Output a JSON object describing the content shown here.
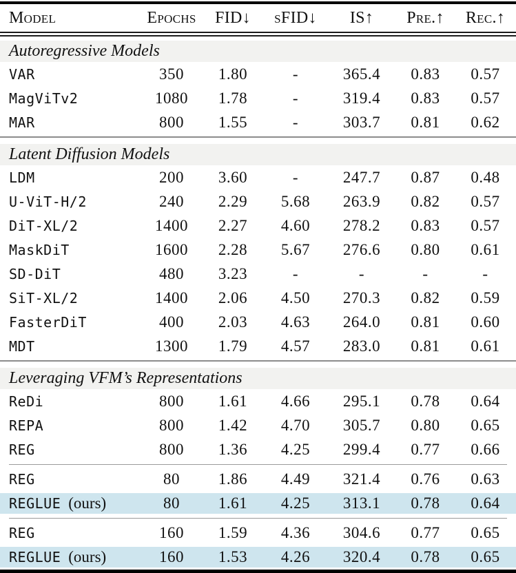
{
  "page": {
    "background": "#ffffff",
    "text_color": "#111111",
    "highlight_color": "#cee5ee",
    "section_band_color": "#f2f2f0"
  },
  "table": {
    "columns": [
      {
        "key": "model",
        "label": "Model"
      },
      {
        "key": "epochs",
        "label": "Epochs"
      },
      {
        "key": "fid",
        "label": "FID↓"
      },
      {
        "key": "sfid",
        "label": "sFID↓"
      },
      {
        "key": "is",
        "label": "IS↑"
      },
      {
        "key": "pre",
        "label": "Pre.↑"
      },
      {
        "key": "rec",
        "label": "Rec.↑"
      }
    ],
    "sections": [
      {
        "title": "Autoregressive Models",
        "groups": [
          {
            "rows": [
              {
                "model": "VAR",
                "suffix": "",
                "epochs": "350",
                "fid": "1.80",
                "sfid": "-",
                "is": "365.4",
                "pre": "0.83",
                "rec": "0.57",
                "highlight": false
              },
              {
                "model": "MagViTv2",
                "suffix": "",
                "epochs": "1080",
                "fid": "1.78",
                "sfid": "-",
                "is": "319.4",
                "pre": "0.83",
                "rec": "0.57",
                "highlight": false
              },
              {
                "model": "MAR",
                "suffix": "",
                "epochs": "800",
                "fid": "1.55",
                "sfid": "-",
                "is": "303.7",
                "pre": "0.81",
                "rec": "0.62",
                "highlight": false
              }
            ]
          }
        ]
      },
      {
        "title": "Latent Diffusion Models",
        "groups": [
          {
            "rows": [
              {
                "model": "LDM",
                "suffix": "",
                "epochs": "200",
                "fid": "3.60",
                "sfid": "-",
                "is": "247.7",
                "pre": "0.87",
                "rec": "0.48",
                "highlight": false
              },
              {
                "model": "U-ViT-H/2",
                "suffix": "",
                "epochs": "240",
                "fid": "2.29",
                "sfid": "5.68",
                "is": "263.9",
                "pre": "0.82",
                "rec": "0.57",
                "highlight": false
              },
              {
                "model": "DiT-XL/2",
                "suffix": "",
                "epochs": "1400",
                "fid": "2.27",
                "sfid": "4.60",
                "is": "278.2",
                "pre": "0.83",
                "rec": "0.57",
                "highlight": false
              },
              {
                "model": "MaskDiT",
                "suffix": "",
                "epochs": "1600",
                "fid": "2.28",
                "sfid": "5.67",
                "is": "276.6",
                "pre": "0.80",
                "rec": "0.61",
                "highlight": false
              },
              {
                "model": "SD-DiT",
                "suffix": "",
                "epochs": "480",
                "fid": "3.23",
                "sfid": "-",
                "is": "-",
                "pre": "-",
                "rec": "-",
                "highlight": false
              },
              {
                "model": "SiT-XL/2",
                "suffix": "",
                "epochs": "1400",
                "fid": "2.06",
                "sfid": "4.50",
                "is": "270.3",
                "pre": "0.82",
                "rec": "0.59",
                "highlight": false
              },
              {
                "model": "FasterDiT",
                "suffix": "",
                "epochs": "400",
                "fid": "2.03",
                "sfid": "4.63",
                "is": "264.0",
                "pre": "0.81",
                "rec": "0.60",
                "highlight": false
              },
              {
                "model": "MDT",
                "suffix": "",
                "epochs": "1300",
                "fid": "1.79",
                "sfid": "4.57",
                "is": "283.0",
                "pre": "0.81",
                "rec": "0.61",
                "highlight": false
              }
            ]
          }
        ]
      },
      {
        "title": "Leveraging VFM’s Representations",
        "groups": [
          {
            "rows": [
              {
                "model": "ReDi",
                "suffix": "",
                "epochs": "800",
                "fid": "1.61",
                "sfid": "4.66",
                "is": "295.1",
                "pre": "0.78",
                "rec": "0.64",
                "highlight": false
              },
              {
                "model": "REPA",
                "suffix": "",
                "epochs": "800",
                "fid": "1.42",
                "sfid": "4.70",
                "is": "305.7",
                "pre": "0.80",
                "rec": "0.65",
                "highlight": false
              },
              {
                "model": "REG",
                "suffix": "",
                "epochs": "800",
                "fid": "1.36",
                "sfid": "4.25",
                "is": "299.4",
                "pre": "0.77",
                "rec": "0.66",
                "highlight": false
              }
            ]
          },
          {
            "rows": [
              {
                "model": "REG",
                "suffix": "",
                "epochs": "80",
                "fid": "1.86",
                "sfid": "4.49",
                "is": "321.4",
                "pre": "0.76",
                "rec": "0.63",
                "highlight": false
              },
              {
                "model": "REGLUE",
                "suffix": "(ours)",
                "epochs": "80",
                "fid": "1.61",
                "sfid": "4.25",
                "is": "313.1",
                "pre": "0.78",
                "rec": "0.64",
                "highlight": true
              }
            ]
          },
          {
            "rows": [
              {
                "model": "REG",
                "suffix": "",
                "epochs": "160",
                "fid": "1.59",
                "sfid": "4.36",
                "is": "304.6",
                "pre": "0.77",
                "rec": "0.65",
                "highlight": false
              },
              {
                "model": "REGLUE",
                "suffix": "(ours)",
                "epochs": "160",
                "fid": "1.53",
                "sfid": "4.26",
                "is": "320.4",
                "pre": "0.78",
                "rec": "0.65",
                "highlight": true
              }
            ]
          }
        ]
      }
    ]
  }
}
